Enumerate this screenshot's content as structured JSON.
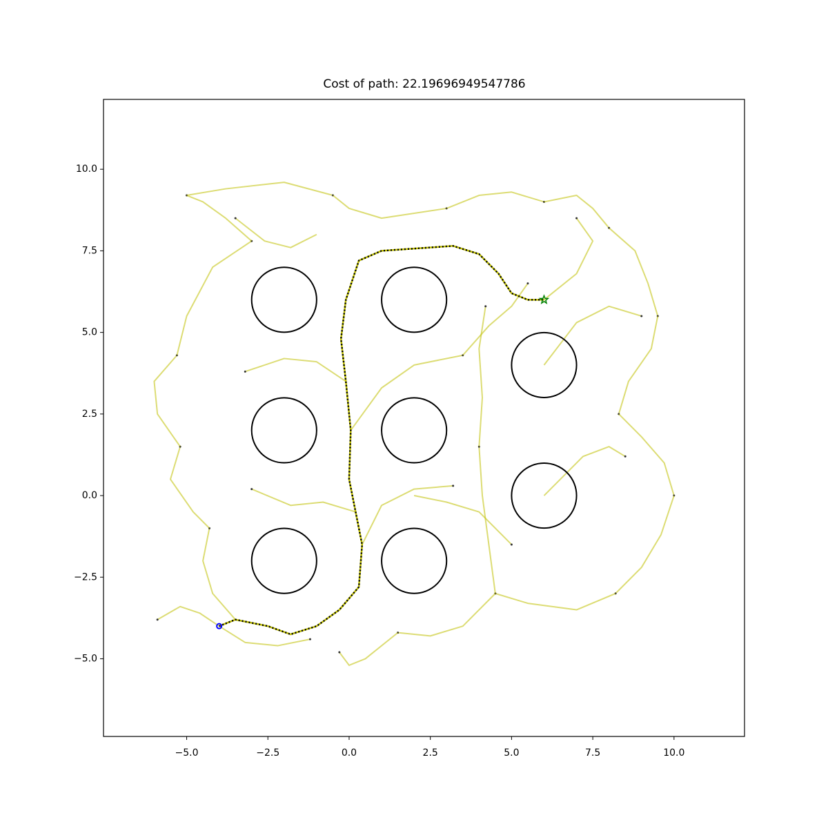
{
  "chart_data": {
    "type": "line",
    "title": "Cost of path: 22.19696949547786",
    "xlim": [
      -7.56,
      12.17
    ],
    "ylim": [
      -7.38,
      12.14
    ],
    "xticks": [
      {
        "value": -5,
        "label": "−5.0"
      },
      {
        "value": -2.5,
        "label": "−2.5"
      },
      {
        "value": 0,
        "label": "0.0"
      },
      {
        "value": 2.5,
        "label": "2.5"
      },
      {
        "value": 5,
        "label": "5.0"
      },
      {
        "value": 7.5,
        "label": "7.5"
      },
      {
        "value": 10,
        "label": "10.0"
      }
    ],
    "yticks": [
      {
        "value": -5,
        "label": "−5.0"
      },
      {
        "value": -2.5,
        "label": "−2.5"
      },
      {
        "value": 0,
        "label": "0.0"
      },
      {
        "value": 2.5,
        "label": "2.5"
      },
      {
        "value": 5,
        "label": "5.0"
      },
      {
        "value": 7.5,
        "label": "7.5"
      },
      {
        "value": 10,
        "label": "10.0"
      }
    ],
    "obstacles": {
      "color": "#000000",
      "items": [
        {
          "x": -2,
          "y": 6,
          "r": 1
        },
        {
          "x": 2,
          "y": 6,
          "r": 1
        },
        {
          "x": 6,
          "y": 4,
          "r": 1
        },
        {
          "x": -2,
          "y": 2,
          "r": 1
        },
        {
          "x": 2,
          "y": 2,
          "r": 1
        },
        {
          "x": 6,
          "y": 0,
          "r": 1
        },
        {
          "x": -2,
          "y": -2,
          "r": 1
        },
        {
          "x": 2,
          "y": -2,
          "r": 1
        }
      ]
    },
    "tree": {
      "color": "#bfbf00",
      "edges": [
        {
          "x": [
            -4,
            -4.6,
            -5.2,
            -5.9
          ],
          "y": [
            -4,
            -3.6,
            -3.4,
            -3.8
          ]
        },
        {
          "x": [
            -4,
            -3.2,
            -2.2,
            -1.2
          ],
          "y": [
            -4,
            -4.5,
            -4.6,
            -4.4
          ]
        },
        {
          "x": [
            -3.5,
            -4.2,
            -4.5,
            -4.3
          ],
          "y": [
            -3.8,
            -3.0,
            -2.0,
            -1.0
          ]
        },
        {
          "x": [
            -4.3,
            -4.8,
            -5.5,
            -5.2
          ],
          "y": [
            -1,
            -0.5,
            0.5,
            1.5
          ]
        },
        {
          "x": [
            -5.2,
            -5.9,
            -6,
            -5.3
          ],
          "y": [
            1.5,
            2.5,
            3.5,
            4.3
          ]
        },
        {
          "x": [
            -5.3,
            -5,
            -4.2,
            -3
          ],
          "y": [
            4.3,
            5.5,
            7,
            7.8
          ]
        },
        {
          "x": [
            -3,
            -3.8,
            -4.5,
            -5
          ],
          "y": [
            7.8,
            8.5,
            9,
            9.2
          ]
        },
        {
          "x": [
            -5,
            -3.8,
            -2,
            -0.5
          ],
          "y": [
            9.2,
            9.4,
            9.6,
            9.2
          ]
        },
        {
          "x": [
            -0.5,
            0,
            1,
            3
          ],
          "y": [
            9.2,
            8.8,
            8.5,
            8.8
          ]
        },
        {
          "x": [
            3,
            4,
            5,
            6
          ],
          "y": [
            8.8,
            9.2,
            9.3,
            9.0
          ]
        },
        {
          "x": [
            6,
            7,
            7.5,
            8
          ],
          "y": [
            9.0,
            9.2,
            8.8,
            8.2
          ]
        },
        {
          "x": [
            8,
            8.8,
            9.2,
            9.5
          ],
          "y": [
            8.2,
            7.5,
            6.5,
            5.5
          ]
        },
        {
          "x": [
            9.5,
            9.3,
            8.6,
            8.3
          ],
          "y": [
            5.5,
            4.5,
            3.5,
            2.5
          ]
        },
        {
          "x": [
            8.3,
            9,
            9.7,
            10
          ],
          "y": [
            2.5,
            1.8,
            1,
            0
          ]
        },
        {
          "x": [
            10,
            9.6,
            9,
            8.2
          ],
          "y": [
            0,
            -1.2,
            -2.2,
            -3
          ]
        },
        {
          "x": [
            8.2,
            7,
            5.5,
            4.5
          ],
          "y": [
            -3,
            -3.5,
            -3.3,
            -3.0
          ]
        },
        {
          "x": [
            4.5,
            3.5,
            2.5,
            1.5
          ],
          "y": [
            -3.0,
            -4,
            -4.3,
            -4.2
          ]
        },
        {
          "x": [
            1.5,
            0.5,
            0,
            -0.3
          ],
          "y": [
            -4.2,
            -5,
            -5.2,
            -4.8
          ]
        },
        {
          "x": [
            4.5,
            4.3,
            4.1,
            4.0
          ],
          "y": [
            -3.0,
            -1.5,
            0,
            1.5
          ]
        },
        {
          "x": [
            4.0,
            4.1,
            4.0,
            4.2
          ],
          "y": [
            1.5,
            3,
            4.5,
            5.8
          ]
        },
        {
          "x": [
            0.2,
            -0.8,
            -1.8,
            -3
          ],
          "y": [
            -0.5,
            -0.2,
            -0.3,
            0.2
          ]
        },
        {
          "x": [
            0.05,
            1,
            2,
            3.5
          ],
          "y": [
            2,
            3.3,
            4,
            4.3
          ]
        },
        {
          "x": [
            3.5,
            4.3,
            5,
            5.5
          ],
          "y": [
            4.3,
            5.2,
            5.8,
            6.5
          ]
        },
        {
          "x": [
            -0.1,
            -1,
            -2,
            -3.2
          ],
          "y": [
            3.5,
            4.1,
            4.2,
            3.8
          ]
        },
        {
          "x": [
            6,
            7,
            7.5,
            7
          ],
          "y": [
            6,
            6.8,
            7.8,
            8.5
          ]
        },
        {
          "x": [
            6,
            7,
            8,
            9
          ],
          "y": [
            4,
            5.3,
            5.8,
            5.5
          ]
        },
        {
          "x": [
            6,
            7.2,
            8,
            8.5
          ],
          "y": [
            0,
            1.2,
            1.5,
            1.2
          ]
        },
        {
          "x": [
            2,
            3,
            4,
            5
          ],
          "y": [
            0,
            -0.2,
            -0.5,
            -1.5
          ]
        },
        {
          "x": [
            0.4,
            1,
            2,
            3.2
          ],
          "y": [
            -1.5,
            -0.3,
            0.2,
            0.3
          ]
        },
        {
          "x": [
            -1,
            -1.8,
            -2.6,
            -3.5
          ],
          "y": [
            8,
            7.6,
            7.8,
            8.5
          ]
        }
      ]
    },
    "path": {
      "color": "#000000",
      "x": [
        -4,
        -3.5,
        -2.5,
        -1.8,
        -1,
        -0.3,
        0.3,
        0.4,
        0.2,
        0,
        0.05,
        -0.1,
        -0.25,
        -0.1,
        0.3,
        1,
        3.2,
        4,
        4.6,
        5,
        5.5,
        6
      ],
      "y": [
        -4,
        -3.8,
        -4.0,
        -4.25,
        -4.0,
        -3.5,
        -2.8,
        -1.5,
        -0.5,
        0.5,
        2,
        3.5,
        4.8,
        6,
        7.2,
        7.5,
        7.65,
        7.4,
        6.8,
        6.2,
        6.0,
        6
      ]
    },
    "start": {
      "x": -4,
      "y": -4,
      "color": "#0000ff"
    },
    "goal": {
      "x": 6,
      "y": 6,
      "color": "#008000"
    }
  }
}
